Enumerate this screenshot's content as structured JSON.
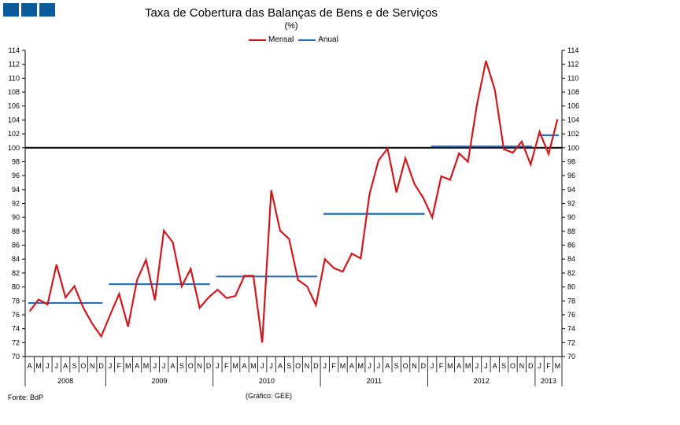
{
  "header": {
    "title": "Taxa de Cobertura das Balanças de Bens e de Serviços",
    "subtitle": "(%)"
  },
  "footer": {
    "source": "Fonte: BdP",
    "credit": "(Gráfico: GEE)"
  },
  "colors": {
    "logo": "#0d5a9a",
    "mensal": "#d0191e",
    "anual": "#2a6ebb",
    "reference": "#000000"
  },
  "chart_data": {
    "type": "line",
    "title": "Taxa de Cobertura das Balanças de Bens e de Serviços",
    "subtitle": "(%)",
    "ylim": [
      70,
      114
    ],
    "ystep": 2,
    "grid": false,
    "reference_line": 100,
    "legend_position": "top-center",
    "month_labels": [
      "A",
      "M",
      "J",
      "J",
      "A",
      "S",
      "O",
      "N",
      "D",
      "J",
      "F",
      "M",
      "A",
      "M",
      "J",
      "J",
      "A",
      "S",
      "O",
      "N",
      "D",
      "J",
      "F",
      "M",
      "A",
      "M",
      "J",
      "J",
      "A",
      "S",
      "O",
      "N",
      "D",
      "J",
      "F",
      "M",
      "A",
      "M",
      "J",
      "J",
      "A",
      "S",
      "O",
      "N",
      "D",
      "J",
      "F",
      "M",
      "A",
      "M",
      "J",
      "J",
      "A",
      "S",
      "O",
      "N",
      "D",
      "J",
      "F",
      "M"
    ],
    "years": [
      {
        "label": "2008",
        "start": 0,
        "end": 8
      },
      {
        "label": "2009",
        "start": 9,
        "end": 20
      },
      {
        "label": "2010",
        "start": 21,
        "end": 32
      },
      {
        "label": "2011",
        "start": 33,
        "end": 44
      },
      {
        "label": "2012",
        "start": 45,
        "end": 56
      },
      {
        "label": "2013",
        "start": 57,
        "end": 59
      }
    ],
    "series": [
      {
        "name": "Mensal",
        "style": "line",
        "values": [
          76.5,
          78.2,
          77.5,
          83.2,
          78.5,
          80.1,
          77.0,
          74.7,
          72.9,
          76.0,
          79.0,
          74.3,
          81.0,
          83.9,
          78.1,
          88.1,
          86.4,
          80.1,
          82.6,
          77.0,
          78.5,
          79.6,
          78.4,
          78.7,
          81.6,
          81.6,
          72.0,
          93.9,
          88.1,
          86.9,
          81.0,
          80.1,
          77.4,
          84.0,
          82.7,
          82.2,
          84.8,
          84.1,
          93.4,
          98.2,
          99.9,
          93.6,
          98.5,
          94.8,
          92.8,
          90.0,
          95.9,
          95.4,
          99.2,
          98.0,
          106.2,
          112.5,
          108.3,
          99.8,
          99.3,
          100.9,
          97.6,
          102.3,
          99.1,
          104.1
        ]
      },
      {
        "name": "Anual",
        "style": "step",
        "segments": [
          {
            "start": 0,
            "end": 8,
            "value": 77.7
          },
          {
            "start": 9,
            "end": 20,
            "value": 80.4
          },
          {
            "start": 21,
            "end": 32,
            "value": 81.5
          },
          {
            "start": 33,
            "end": 44,
            "value": 90.5
          },
          {
            "start": 45,
            "end": 56,
            "value": 100.2
          },
          {
            "start": 57,
            "end": 59,
            "value": 101.8
          }
        ]
      }
    ]
  }
}
